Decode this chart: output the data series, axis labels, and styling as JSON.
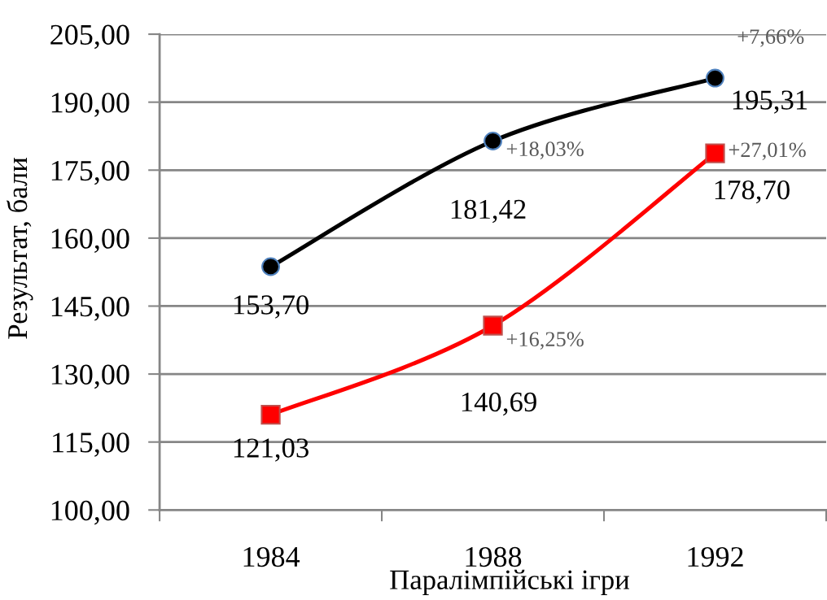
{
  "chart_data": {
    "type": "line",
    "xlabel": "Паралімпійські ігри",
    "ylabel": "Результат, бали",
    "categories": [
      "1984",
      "1988",
      "1992"
    ],
    "series": [
      {
        "color": "#000000",
        "marker": "circle",
        "values": [
          153.7,
          181.42,
          195.31
        ],
        "value_labels": [
          "153,70",
          "181,42",
          "195,31"
        ]
      },
      {
        "color": "#ff0000",
        "marker": "square",
        "values": [
          121.03,
          140.69,
          178.7
        ],
        "value_labels": [
          "121,03",
          "140,69",
          "178,70"
        ]
      }
    ],
    "ylim": [
      100,
      205
    ],
    "yticks": [
      {
        "value": 100,
        "label": "100,00"
      },
      {
        "value": 115,
        "label": "115,00"
      },
      {
        "value": 130,
        "label": "130,00"
      },
      {
        "value": 145,
        "label": "145,00"
      },
      {
        "value": 160,
        "label": "160,00"
      },
      {
        "value": 175,
        "label": "175,00"
      },
      {
        "value": 190,
        "label": "190,00"
      },
      {
        "value": 205,
        "label": "205,00"
      }
    ],
    "grid": "y",
    "line_style": "solid",
    "annotations": [
      "+7,66%",
      {
        "text": "+18,03%",
        "x": "1988",
        "y": 181.42
      },
      {
        "text": "+27,01%",
        "x": "1992",
        "y": 178.7
      },
      {
        "text": "+16,25%",
        "x": "1988",
        "y": 140.69
      }
    ]
  }
}
